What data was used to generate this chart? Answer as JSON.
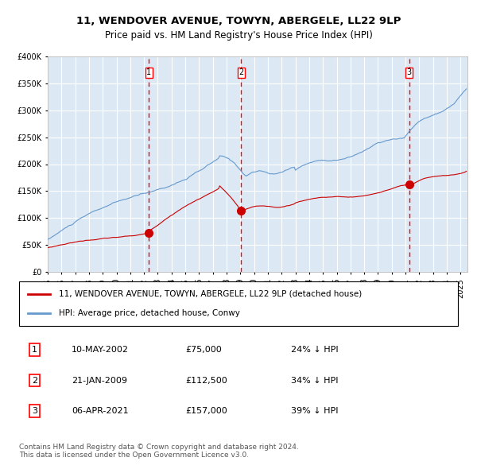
{
  "title1": "11, WENDOVER AVENUE, TOWYN, ABERGELE, LL22 9LP",
  "title2": "Price paid vs. HM Land Registry's House Price Index (HPI)",
  "red_label": "11, WENDOVER AVENUE, TOWYN, ABERGELE, LL22 9LP (detached house)",
  "blue_label": "HPI: Average price, detached house, Conwy",
  "transactions": [
    {
      "num": 1,
      "date": "2002-05-10",
      "price": 75000,
      "pct": "24%",
      "x_val": 2002.356
    },
    {
      "num": 2,
      "date": "2009-01-21",
      "price": 112500,
      "pct": "34%",
      "x_val": 2009.055
    },
    {
      "num": 3,
      "date": "2021-04-06",
      "price": 157000,
      "pct": "39%",
      "x_val": 2021.264
    }
  ],
  "table_rows": [
    [
      "1",
      "10-MAY-2002",
      "£75,000",
      "24% ↓ HPI"
    ],
    [
      "2",
      "21-JAN-2009",
      "£112,500",
      "34% ↓ HPI"
    ],
    [
      "3",
      "06-APR-2021",
      "£157,000",
      "39% ↓ HPI"
    ]
  ],
  "footer": "Contains HM Land Registry data © Crown copyright and database right 2024.\nThis data is licensed under the Open Government Licence v3.0.",
  "ylim": [
    0,
    400000
  ],
  "xlim_start": 1995.0,
  "xlim_end": 2025.5,
  "background_color": "#dce9f5",
  "plot_bg": "#dce9f5",
  "red_color": "#cc0000",
  "blue_color": "#6699cc",
  "grid_color": "#ffffff",
  "dashed_color": "#ff0000"
}
